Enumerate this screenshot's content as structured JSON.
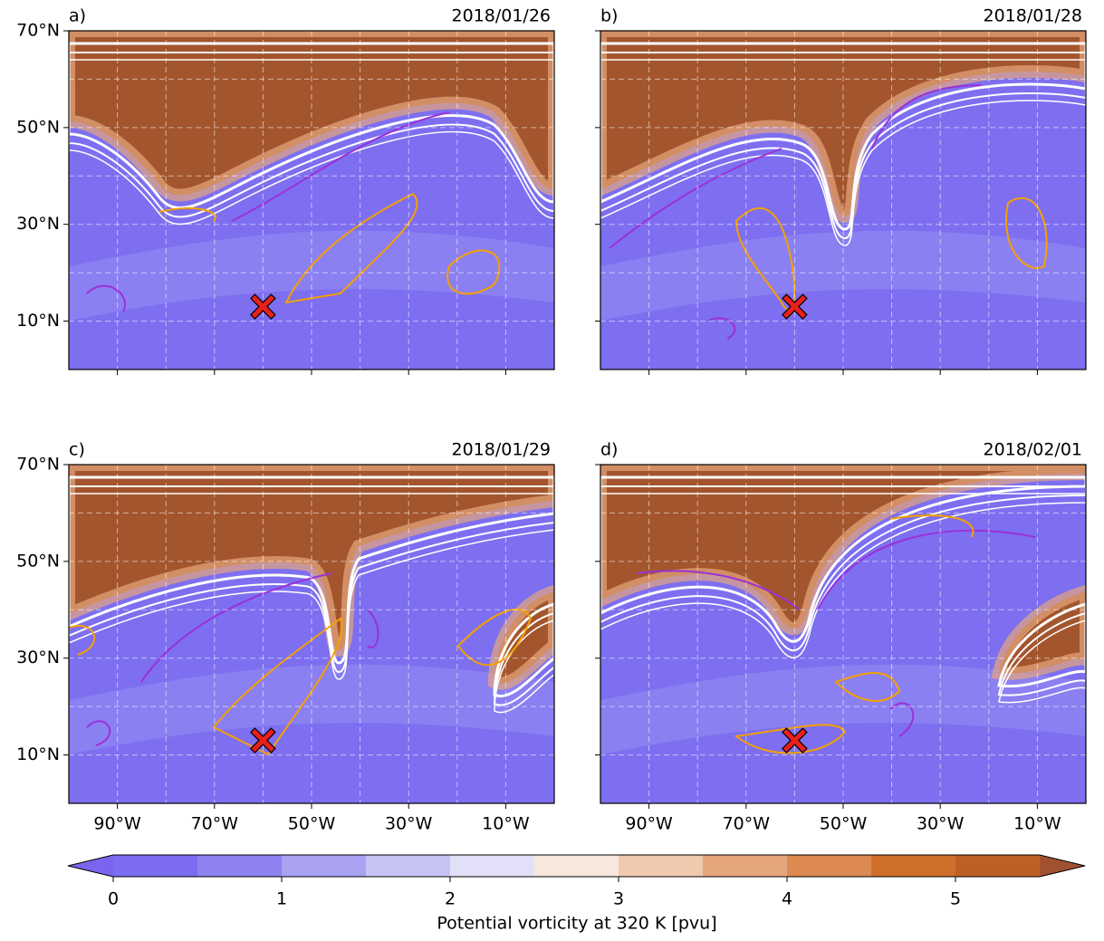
{
  "panels": [
    {
      "label": "a)",
      "date": "2018/01/26"
    },
    {
      "label": "b)",
      "date": "2018/01/28"
    },
    {
      "label": "c)",
      "date": "2018/01/29"
    },
    {
      "label": "d)",
      "date": "2018/02/01"
    }
  ],
  "map": {
    "lonlim": [
      -100,
      0
    ],
    "latlim": [
      0,
      70
    ],
    "xticks": [
      {
        "value": -90,
        "label": "90°W"
      },
      {
        "value": -70,
        "label": "70°W"
      },
      {
        "value": -50,
        "label": "50°W"
      },
      {
        "value": -30,
        "label": "30°W"
      },
      {
        "value": -10,
        "label": "10°W"
      }
    ],
    "yticks": [
      {
        "value": 10,
        "label": "10°N"
      },
      {
        "value": 30,
        "label": "30°N"
      },
      {
        "value": 50,
        "label": "50°N"
      },
      {
        "value": 70,
        "label": "70°N"
      }
    ],
    "xgrid": [
      -90,
      -80,
      -70,
      -60,
      -50,
      -40,
      -30,
      -20,
      -10
    ],
    "ygrid": [
      10,
      20,
      30,
      40,
      50,
      60
    ],
    "marker": {
      "lon": -60,
      "lat": 13,
      "color": "#e8201c"
    }
  },
  "colorbar": {
    "label": "Potential vorticity at 320 K [pvu]",
    "levels": [
      0,
      0.5,
      1,
      1.5,
      2,
      2.5,
      3,
      3.5,
      4,
      4.5,
      5,
      5.5
    ],
    "colors": [
      "#7b6cf0",
      "#8e82f1",
      "#aaa2f3",
      "#c8c3f5",
      "#e2e0f8",
      "#f8e7dc",
      "#f0c9ae",
      "#e6a67d",
      "#dc8a52",
      "#cf6e2b",
      "#bd6027",
      "#a9552d"
    ],
    "under_color": "#7a66ee",
    "over_color": "#9f5131",
    "ticks": [
      0,
      1,
      2,
      3,
      4,
      5
    ]
  }
}
